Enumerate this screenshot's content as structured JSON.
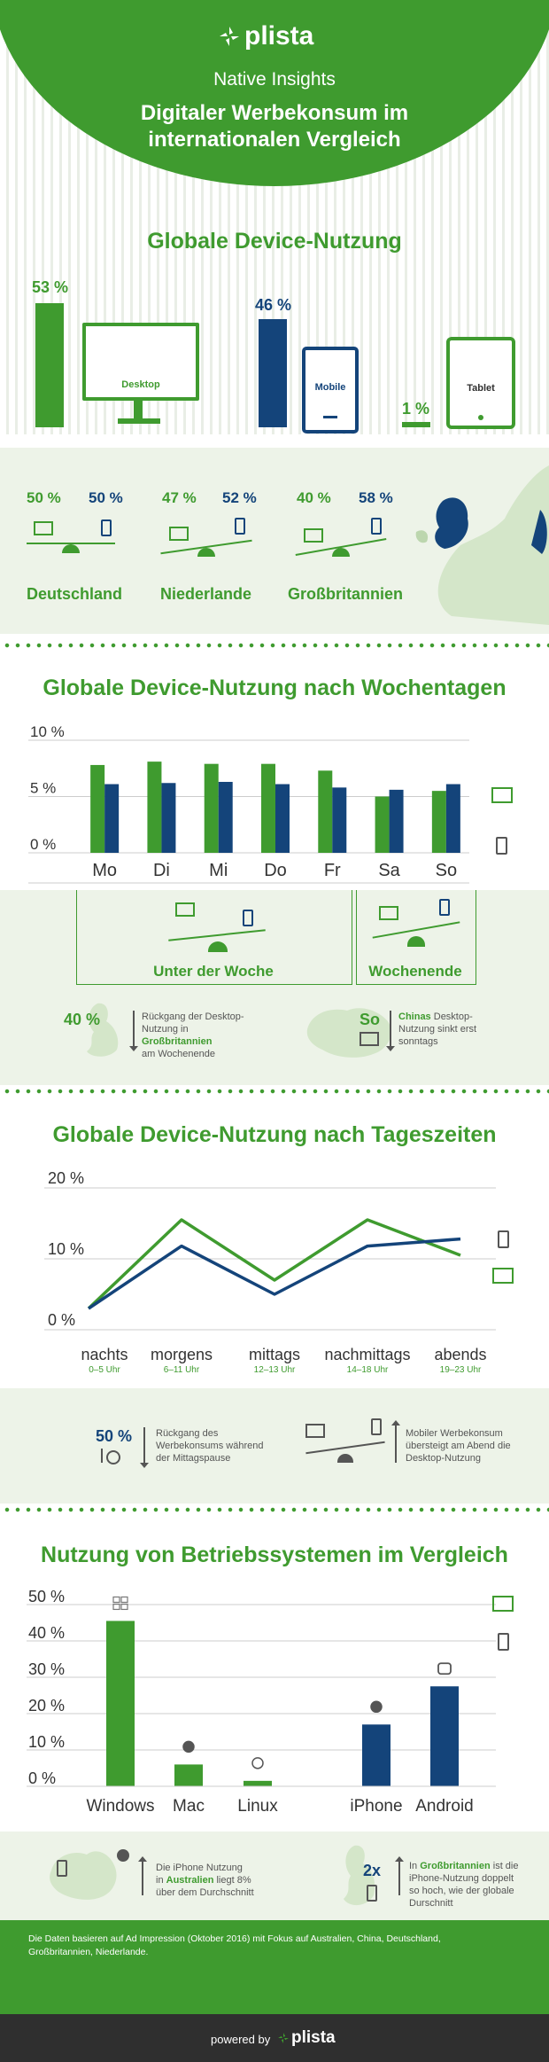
{
  "header": {
    "brand": "plista",
    "subtitle": "Native Insights",
    "title_line1": "Digitaler Werbekonsum im",
    "title_line2": "internationalen Vergleich"
  },
  "section1": {
    "title": "Globale Device-Nutzung",
    "desktop": {
      "pct": "53 %",
      "label": "Desktop",
      "value": 53
    },
    "mobile": {
      "pct": "46 %",
      "label": "Mobile",
      "value": 46
    },
    "tablet": {
      "pct": "1 %",
      "label": "Tablet",
      "value": 1
    }
  },
  "countries": [
    {
      "name": "Deutschland",
      "desktop": "50 %",
      "mobile": "50 %"
    },
    {
      "name": "Niederlande",
      "desktop": "47 %",
      "mobile": "52 %"
    },
    {
      "name": "Großbritannien",
      "desktop": "40 %",
      "mobile": "58 %"
    }
  ],
  "section2": {
    "title": "Globale Device-Nutzung nach Wochentagen",
    "weekday_label": "Unter der Woche",
    "weekend_label": "Wochenende",
    "callout1_value": "40 %",
    "callout1_text1": "Rückgang der Desktop-",
    "callout1_text2": "Nutzung in ",
    "callout1_bold": "Großbritannien",
    "callout1_text3": "am Wochenende",
    "callout2_value": "So",
    "callout2_bold": "Chinas",
    "callout2_text1": " Desktop-",
    "callout2_text2": "Nutzung sinkt erst",
    "callout2_text3": "sonntags"
  },
  "section3": {
    "title": "Globale Device-Nutzung nach Tageszeiten",
    "times": [
      {
        "label": "nachts",
        "hours": "0–5 Uhr"
      },
      {
        "label": "morgens",
        "hours": "6–11 Uhr"
      },
      {
        "label": "mittags",
        "hours": "12–13 Uhr"
      },
      {
        "label": "nachmittags",
        "hours": "14–18 Uhr"
      },
      {
        "label": "abends",
        "hours": "19–23 Uhr"
      }
    ],
    "callout1_value": "50 %",
    "callout1_text1": "Rückgang des",
    "callout1_text2": "Werbekonsums während",
    "callout1_text3": "der Mittagspause",
    "callout2_text1": "Mobiler Werbekonsum",
    "callout2_text2": "übersteigt am Abend die",
    "callout2_text3": "Desktop-Nutzung"
  },
  "section4": {
    "title": "Nutzung von Betriebssystemen im Vergleich",
    "callout1_text1": "Die iPhone Nutzung",
    "callout1_text2": "in ",
    "callout1_bold": "Australien",
    "callout1_text3": " liegt 8%",
    "callout1_text4": "über dem Durchschnitt",
    "callout2_value": "2x",
    "callout2_text1": "In ",
    "callout2_bold": "Großbritannien",
    "callout2_text2": " ist die",
    "callout2_text3": "iPhone-Nutzung doppelt",
    "callout2_text4": "so hoch, wie der globale",
    "callout2_text5": "Durschnitt"
  },
  "footer": {
    "note_line1": "Die Daten basieren auf Ad Impression (Oktober 2016) mit Fokus auf Australien, China, Deutschland,",
    "note_line2": "Großbritannien, Niederlande.",
    "powered": "powered by",
    "brand": "plista"
  },
  "colors": {
    "desktop": "#3f9b2f",
    "mobile": "#14447a"
  },
  "chart_data": [
    {
      "type": "bar",
      "title": "Globale Device-Nutzung nach Wochentagen",
      "categories": [
        "Mo",
        "Di",
        "Mi",
        "Do",
        "Fr",
        "Sa",
        "So"
      ],
      "y_ticks": [
        "10 %",
        "5 %",
        "0 %"
      ],
      "ylim": [
        0,
        10
      ],
      "series": [
        {
          "values": [
            7.8,
            8.1,
            7.9,
            7.9,
            7.3,
            5.0,
            5.5
          ]
        },
        {
          "values": [
            6.1,
            6.2,
            6.3,
            6.1,
            5.8,
            5.6,
            6.1
          ]
        }
      ]
    },
    {
      "type": "line",
      "title": "Globale Device-Nutzung nach Tageszeiten",
      "categories": [
        "nachts",
        "morgens",
        "mittags",
        "nachmittags",
        "abends"
      ],
      "y_ticks": [
        "20 %",
        "10 %",
        "0 %"
      ],
      "ylim": [
        0,
        20
      ],
      "series": [
        {
          "values": [
            3,
            15.5,
            7,
            15.5,
            10.5
          ]
        },
        {
          "values": [
            3,
            11.8,
            5,
            11.8,
            12.8
          ]
        }
      ]
    },
    {
      "type": "bar",
      "title": "Nutzung von Betriebssystemen im Vergleich",
      "categories": [
        "Windows",
        "Mac",
        "Linux",
        "iPhone",
        "Android"
      ],
      "y_ticks": [
        "50 %",
        "40 %",
        "30 %",
        "20 %",
        "10 %",
        "0 %"
      ],
      "ylim": [
        0,
        50
      ],
      "values": [
        45.5,
        6,
        1.5,
        17,
        27.5
      ],
      "series_of": [
        "desktop",
        "desktop",
        "desktop",
        "mobile",
        "mobile"
      ]
    }
  ]
}
